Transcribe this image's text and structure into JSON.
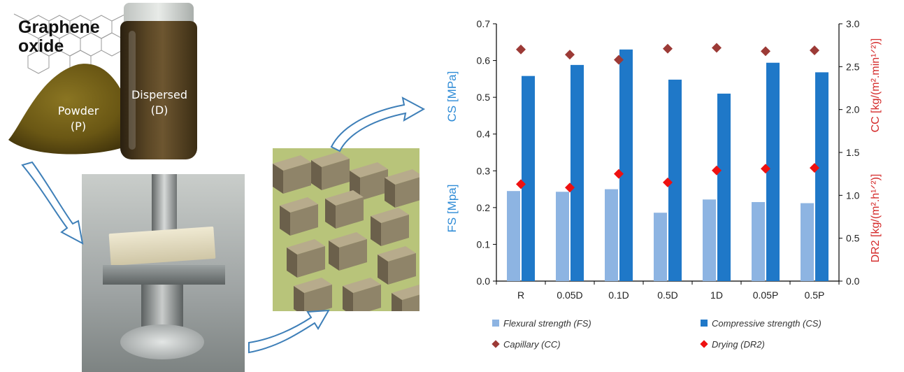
{
  "illustration": {
    "title_line1": "Graphene",
    "title_line2": "oxide",
    "powder_label": "Powder",
    "powder_code": "(P)",
    "dispersed_label": "Dispersed",
    "dispersed_code": "(D)"
  },
  "colors": {
    "flexural": "#8db4e2",
    "compressive": "#1f78c8",
    "capillary": "#9c3a36",
    "drying": "#ee1111",
    "left_axis_label": "#2e8bd6",
    "right_axis_label": "#d42a2a",
    "arrow_stroke": "#3e7fb8"
  },
  "chart_data": {
    "type": "bar",
    "categories": [
      "R",
      "0.05D",
      "0.1D",
      "0.5D",
      "1D",
      "0.05P",
      "0.5P"
    ],
    "series": [
      {
        "name": "Flexural strength (FS)",
        "kind": "bar",
        "axis": "left",
        "values": [
          0.245,
          0.243,
          0.25,
          0.186,
          0.222,
          0.215,
          0.212
        ]
      },
      {
        "name": "Compressive strength (CS)",
        "kind": "bar",
        "axis": "left",
        "values": [
          0.558,
          0.588,
          0.63,
          0.548,
          0.51,
          0.594,
          0.568
        ]
      },
      {
        "name": "Capillary (CC)",
        "kind": "marker",
        "axis": "right",
        "values": [
          2.7,
          2.64,
          2.58,
          2.71,
          2.72,
          2.68,
          2.69
        ]
      },
      {
        "name": "Drying (DR2)",
        "kind": "marker",
        "axis": "right",
        "values": [
          1.13,
          1.09,
          1.25,
          1.15,
          1.29,
          1.31,
          1.32
        ]
      }
    ],
    "ylim_left": [
      0,
      0.7
    ],
    "yticks_left": [
      "0.0",
      "0.1",
      "0.2",
      "0.3",
      "0.4",
      "0.5",
      "0.6",
      "0.7"
    ],
    "ylim_right": [
      0,
      3.0
    ],
    "yticks_right": [
      "0.0",
      "0.5",
      "1.0",
      "1.5",
      "2.0",
      "2.5",
      "3.0"
    ],
    "ylabel_left_top": "CS [MPa]",
    "ylabel_left_bottom": "FS [Mpa]",
    "ylabel_right_top": "CC [kg/(m².min¹ᐟ²)]",
    "ylabel_right_bottom": "DR2 [kg/(m².h¹ᐟ²)]",
    "grid": false,
    "legend_position": "bottom"
  }
}
